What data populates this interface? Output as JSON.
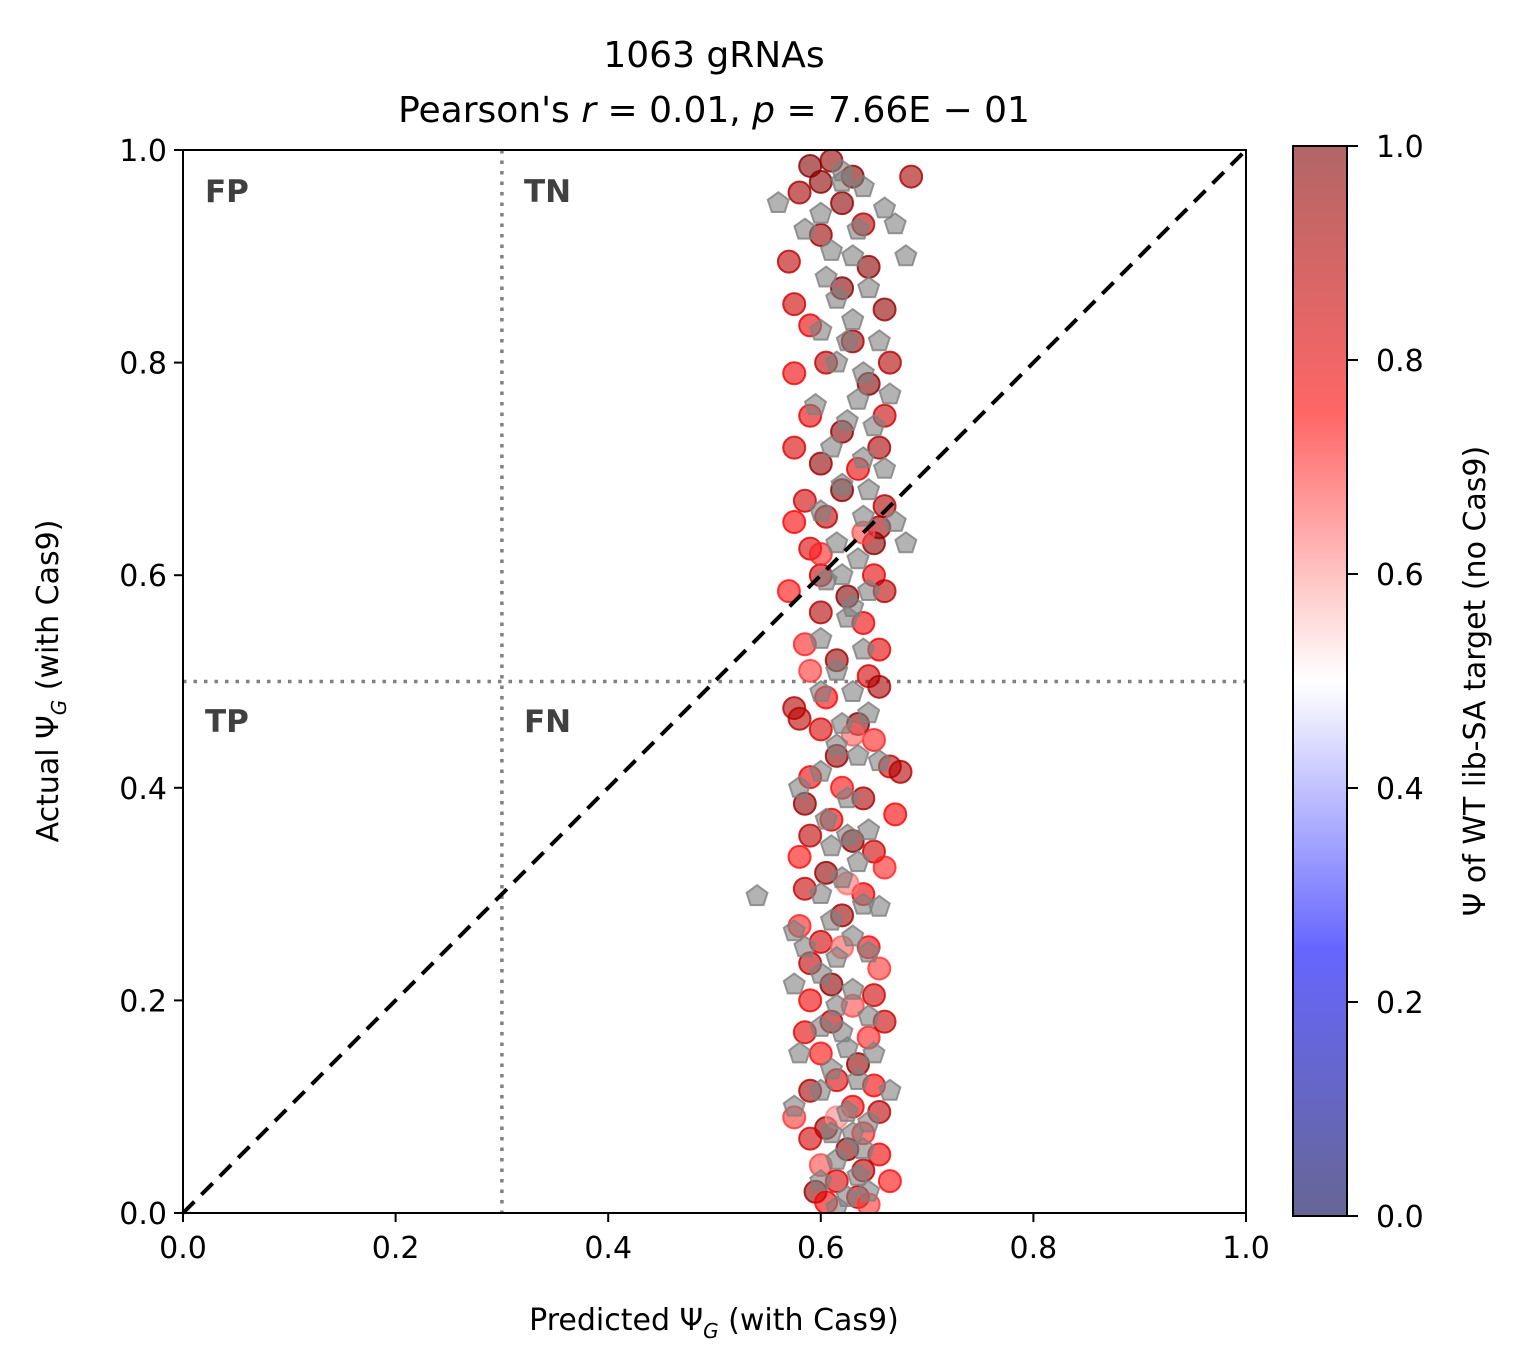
{
  "chart_data": {
    "type": "scatter",
    "title": "1063 gRNAs",
    "subtitle_prefix": "Pearson's ",
    "stats": {
      "r": "0.01",
      "p": "7.66E",
      "p_exp": "01"
    },
    "xlabel": {
      "prefix": "Predicted Ψ",
      "sub": "G",
      "suffix": " (with Cas9)"
    },
    "ylabel": {
      "prefix": "Actual Ψ",
      "sub": "G",
      "suffix": " (with Cas9)"
    },
    "xlim": [
      0,
      1
    ],
    "ylim": [
      0,
      1
    ],
    "x_ticks": [
      "0.0",
      "0.2",
      "0.4",
      "0.6",
      "0.8",
      "1.0"
    ],
    "y_ticks": [
      "0.0",
      "0.2",
      "0.4",
      "0.6",
      "0.8",
      "1.0"
    ],
    "quadrant_labels": [
      "FP",
      "TN",
      "TP",
      "FN"
    ],
    "threshold_lines": {
      "x": 0.3,
      "y": 0.5
    },
    "diagonal": true,
    "colorbar": {
      "label": "Ψ of WT lib-SA target (no Cas9)",
      "ticks": [
        "0.0",
        "0.2",
        "0.4",
        "0.6",
        "0.8",
        "1.0"
      ],
      "range": [
        0,
        1
      ],
      "colormap": "seismic",
      "colors": [
        "#00008b",
        "#0000ff",
        "#ffffff",
        "#ff0000",
        "#8b0000"
      ]
    },
    "series_style": {
      "circle_colored": "circles colored by Ψ of WT lib-SA target",
      "pentagon_gray": "#808080"
    },
    "points_circle": [
      [
        0.59,
        0.985,
        0.99
      ],
      [
        0.6,
        0.97,
        0.98
      ],
      [
        0.61,
        0.99,
        0.96
      ],
      [
        0.58,
        0.96,
        0.93
      ],
      [
        0.63,
        0.975,
        0.99
      ],
      [
        0.685,
        0.975,
        0.92
      ],
      [
        0.62,
        0.95,
        0.97
      ],
      [
        0.64,
        0.93,
        0.9
      ],
      [
        0.57,
        0.895,
        0.88
      ],
      [
        0.6,
        0.92,
        0.95
      ],
      [
        0.645,
        0.89,
        0.97
      ],
      [
        0.575,
        0.855,
        0.85
      ],
      [
        0.62,
        0.87,
        0.99
      ],
      [
        0.59,
        0.835,
        0.8
      ],
      [
        0.66,
        0.85,
        0.96
      ],
      [
        0.63,
        0.82,
        0.94
      ],
      [
        0.605,
        0.8,
        0.88
      ],
      [
        0.665,
        0.8,
        0.9
      ],
      [
        0.575,
        0.79,
        0.78
      ],
      [
        0.645,
        0.78,
        0.99
      ],
      [
        0.59,
        0.75,
        0.8
      ],
      [
        0.66,
        0.75,
        0.86
      ],
      [
        0.62,
        0.735,
        0.97
      ],
      [
        0.575,
        0.72,
        0.82
      ],
      [
        0.655,
        0.72,
        0.92
      ],
      [
        0.6,
        0.705,
        0.96
      ],
      [
        0.635,
        0.7,
        0.8
      ],
      [
        0.585,
        0.67,
        0.84
      ],
      [
        0.62,
        0.68,
        0.98
      ],
      [
        0.66,
        0.665,
        0.9
      ],
      [
        0.575,
        0.65,
        0.76
      ],
      [
        0.605,
        0.655,
        0.88
      ],
      [
        0.655,
        0.645,
        0.94
      ],
      [
        0.59,
        0.625,
        0.82
      ],
      [
        0.65,
        0.63,
        0.98
      ],
      [
        0.6,
        0.6,
        0.86
      ],
      [
        0.65,
        0.6,
        0.8
      ],
      [
        0.57,
        0.585,
        0.74
      ],
      [
        0.625,
        0.58,
        0.99
      ],
      [
        0.66,
        0.585,
        0.88
      ],
      [
        0.6,
        0.565,
        0.9
      ],
      [
        0.64,
        0.555,
        0.78
      ],
      [
        0.585,
        0.535,
        0.72
      ],
      [
        0.655,
        0.53,
        0.8
      ],
      [
        0.615,
        0.52,
        0.95
      ],
      [
        0.59,
        0.51,
        0.7
      ],
      [
        0.645,
        0.505,
        0.84
      ],
      [
        0.655,
        0.495,
        0.92
      ],
      [
        0.575,
        0.475,
        0.9
      ],
      [
        0.605,
        0.485,
        0.75
      ],
      [
        0.58,
        0.465,
        0.88
      ],
      [
        0.635,
        0.46,
        0.98
      ],
      [
        0.6,
        0.455,
        0.82
      ],
      [
        0.65,
        0.445,
        0.72
      ],
      [
        0.615,
        0.43,
        0.96
      ],
      [
        0.665,
        0.42,
        0.88
      ],
      [
        0.675,
        0.415,
        0.9
      ],
      [
        0.59,
        0.41,
        0.78
      ],
      [
        0.62,
        0.4,
        0.74
      ],
      [
        0.64,
        0.39,
        0.92
      ],
      [
        0.585,
        0.385,
        0.96
      ],
      [
        0.61,
        0.37,
        0.8
      ],
      [
        0.67,
        0.375,
        0.76
      ],
      [
        0.59,
        0.355,
        0.88
      ],
      [
        0.63,
        0.35,
        0.98
      ],
      [
        0.58,
        0.335,
        0.74
      ],
      [
        0.65,
        0.34,
        0.84
      ],
      [
        0.605,
        0.32,
        0.96
      ],
      [
        0.66,
        0.325,
        0.72
      ],
      [
        0.585,
        0.305,
        0.86
      ],
      [
        0.64,
        0.3,
        0.78
      ],
      [
        0.62,
        0.28,
        0.94
      ],
      [
        0.58,
        0.27,
        0.72
      ],
      [
        0.6,
        0.255,
        0.84
      ],
      [
        0.645,
        0.25,
        0.76
      ],
      [
        0.59,
        0.235,
        0.88
      ],
      [
        0.655,
        0.23,
        0.7
      ],
      [
        0.61,
        0.215,
        0.97
      ],
      [
        0.59,
        0.2,
        0.78
      ],
      [
        0.65,
        0.205,
        0.84
      ],
      [
        0.63,
        0.195,
        0.68
      ],
      [
        0.61,
        0.18,
        0.9
      ],
      [
        0.585,
        0.17,
        0.8
      ],
      [
        0.645,
        0.165,
        0.72
      ],
      [
        0.66,
        0.18,
        0.86
      ],
      [
        0.6,
        0.15,
        0.74
      ],
      [
        0.635,
        0.14,
        0.96
      ],
      [
        0.615,
        0.125,
        0.82
      ],
      [
        0.65,
        0.12,
        0.76
      ],
      [
        0.59,
        0.115,
        0.92
      ],
      [
        0.63,
        0.1,
        0.78
      ],
      [
        0.575,
        0.09,
        0.7
      ],
      [
        0.655,
        0.095,
        0.88
      ],
      [
        0.605,
        0.08,
        0.94
      ],
      [
        0.64,
        0.075,
        0.72
      ],
      [
        0.59,
        0.07,
        0.84
      ],
      [
        0.625,
        0.06,
        0.98
      ],
      [
        0.655,
        0.055,
        0.78
      ],
      [
        0.6,
        0.045,
        0.68
      ],
      [
        0.64,
        0.04,
        0.9
      ],
      [
        0.615,
        0.03,
        0.82
      ],
      [
        0.665,
        0.03,
        0.74
      ],
      [
        0.595,
        0.02,
        0.96
      ],
      [
        0.635,
        0.015,
        0.86
      ],
      [
        0.605,
        0.01,
        0.76
      ],
      [
        0.645,
        0.008,
        0.7
      ],
      [
        0.62,
        0.25,
        0.66
      ],
      [
        0.63,
        0.45,
        0.66
      ],
      [
        0.64,
        0.64,
        0.68
      ],
      [
        0.625,
        0.31,
        0.64
      ],
      [
        0.615,
        0.09,
        0.62
      ],
      [
        0.6,
        0.62,
        0.72
      ]
    ],
    "points_pentagon": [
      [
        0.56,
        0.95
      ],
      [
        0.585,
        0.925
      ],
      [
        0.6,
        0.94
      ],
      [
        0.62,
        0.97
      ],
      [
        0.64,
        0.965
      ],
      [
        0.66,
        0.945
      ],
      [
        0.67,
        0.93
      ],
      [
        0.68,
        0.9
      ],
      [
        0.605,
        0.88
      ],
      [
        0.63,
        0.9
      ],
      [
        0.615,
        0.86
      ],
      [
        0.645,
        0.87
      ],
      [
        0.6,
        0.83
      ],
      [
        0.63,
        0.84
      ],
      [
        0.655,
        0.82
      ],
      [
        0.615,
        0.8
      ],
      [
        0.64,
        0.79
      ],
      [
        0.665,
        0.77
      ],
      [
        0.595,
        0.76
      ],
      [
        0.625,
        0.745
      ],
      [
        0.65,
        0.74
      ],
      [
        0.61,
        0.72
      ],
      [
        0.64,
        0.71
      ],
      [
        0.66,
        0.7
      ],
      [
        0.62,
        0.685
      ],
      [
        0.645,
        0.68
      ],
      [
        0.6,
        0.66
      ],
      [
        0.64,
        0.655
      ],
      [
        0.67,
        0.65
      ],
      [
        0.68,
        0.63
      ],
      [
        0.615,
        0.63
      ],
      [
        0.635,
        0.615
      ],
      [
        0.605,
        0.595
      ],
      [
        0.645,
        0.585
      ],
      [
        0.625,
        0.56
      ],
      [
        0.6,
        0.54
      ],
      [
        0.64,
        0.53
      ],
      [
        0.615,
        0.51
      ],
      [
        0.63,
        0.49
      ],
      [
        0.6,
        0.49
      ],
      [
        0.645,
        0.47
      ],
      [
        0.615,
        0.44
      ],
      [
        0.635,
        0.43
      ],
      [
        0.6,
        0.415
      ],
      [
        0.655,
        0.425
      ],
      [
        0.58,
        0.4
      ],
      [
        0.625,
        0.39
      ],
      [
        0.605,
        0.37
      ],
      [
        0.645,
        0.36
      ],
      [
        0.61,
        0.345
      ],
      [
        0.635,
        0.33
      ],
      [
        0.62,
        0.315
      ],
      [
        0.54,
        0.298
      ],
      [
        0.6,
        0.3
      ],
      [
        0.64,
        0.29
      ],
      [
        0.655,
        0.288
      ],
      [
        0.61,
        0.275
      ],
      [
        0.575,
        0.265
      ],
      [
        0.63,
        0.26
      ],
      [
        0.585,
        0.25
      ],
      [
        0.615,
        0.24
      ],
      [
        0.645,
        0.245
      ],
      [
        0.6,
        0.225
      ],
      [
        0.575,
        0.215
      ],
      [
        0.63,
        0.21
      ],
      [
        0.615,
        0.195
      ],
      [
        0.645,
        0.185
      ],
      [
        0.6,
        0.175
      ],
      [
        0.58,
        0.15
      ],
      [
        0.625,
        0.155
      ],
      [
        0.65,
        0.15
      ],
      [
        0.61,
        0.135
      ],
      [
        0.635,
        0.125
      ],
      [
        0.665,
        0.115
      ],
      [
        0.6,
        0.115
      ],
      [
        0.575,
        0.1
      ],
      [
        0.625,
        0.095
      ],
      [
        0.645,
        0.085
      ],
      [
        0.61,
        0.075
      ],
      [
        0.64,
        0.06
      ],
      [
        0.615,
        0.05
      ],
      [
        0.635,
        0.035
      ],
      [
        0.6,
        0.03
      ],
      [
        0.625,
        0.015
      ],
      [
        0.645,
        0.02
      ],
      [
        0.615,
        0.005
      ],
      [
        0.62,
        0.98
      ],
      [
        0.635,
        0.925
      ],
      [
        0.61,
        0.905
      ],
      [
        0.625,
        0.82
      ],
      [
        0.635,
        0.765
      ],
      [
        0.62,
        0.6
      ],
      [
        0.63,
        0.57
      ],
      [
        0.62,
        0.46
      ],
      [
        0.625,
        0.355
      ],
      [
        0.62,
        0.17
      ],
      [
        0.63,
        0.075
      ]
    ]
  }
}
